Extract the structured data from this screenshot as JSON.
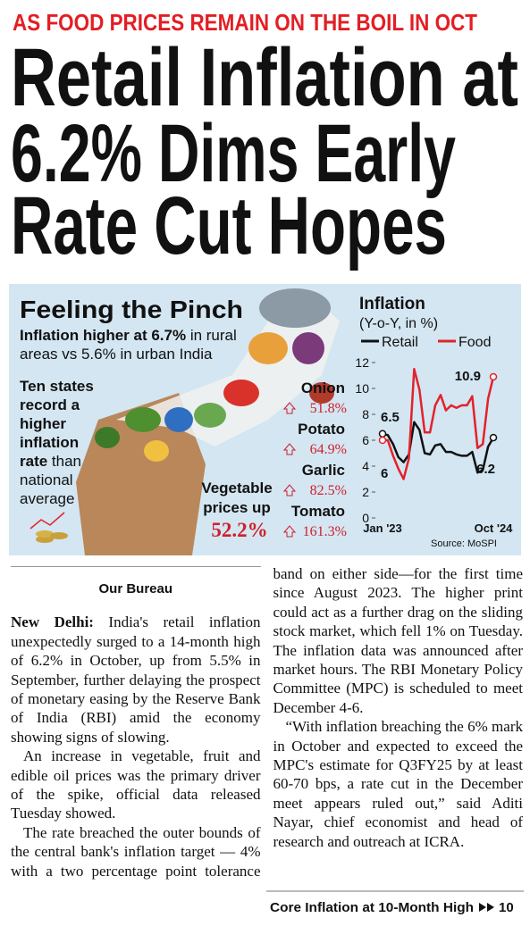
{
  "kicker": "AS FOOD PRICES REMAIN ON THE BOIL IN OCT",
  "headline": [
    "Retail Inflation at",
    "6.2% Dims Early",
    "Rate Cut Hopes"
  ],
  "infographic": {
    "title": "Feeling the Pinch",
    "summary": [
      "Inflation higher at 6.7%",
      " in rural",
      "areas vs 5.6% in urban India"
    ],
    "states_note": [
      "Ten states",
      "record a",
      "higher",
      "inflation",
      "rate",
      " than",
      "national",
      "average"
    ],
    "vegetables": [
      "Vegetable",
      "prices up",
      "52.2%"
    ],
    "items": [
      {
        "name": "Onion",
        "change": "51.8%"
      },
      {
        "name": "Potato",
        "change": "64.9%"
      },
      {
        "name": "Garlic",
        "change": "82.5%"
      },
      {
        "name": "Tomato",
        "change": "161.3%"
      }
    ]
  },
  "chart_data": {
    "type": "line",
    "title": "Inflation",
    "subtitle": "(Y-o-Y, in %)",
    "categories": [
      "Jan '23",
      null,
      null,
      null,
      null,
      null,
      null,
      null,
      null,
      null,
      null,
      null,
      null,
      null,
      null,
      null,
      null,
      null,
      null,
      null,
      null,
      "Oct '24"
    ],
    "series": [
      {
        "name": "Retail",
        "color": "#111111",
        "values": [
          6.5,
          6.4,
          5.7,
          4.7,
          4.3,
          4.9,
          7.4,
          6.8,
          5.0,
          4.9,
          5.6,
          5.7,
          5.1,
          5.1,
          4.9,
          4.8,
          4.8,
          5.1,
          3.5,
          3.7,
          5.5,
          6.2
        ]
      },
      {
        "name": "Food",
        "color": "#e3222b",
        "values": [
          6,
          6.0,
          4.8,
          3.8,
          3.0,
          4.6,
          11.5,
          9.9,
          6.6,
          6.6,
          8.7,
          9.5,
          8.3,
          8.7,
          8.5,
          8.7,
          8.7,
          9.4,
          5.4,
          5.7,
          9.2,
          10.9
        ]
      }
    ],
    "ylim": [
      0,
      12
    ],
    "yticks": [
      0,
      2,
      4,
      6,
      8,
      10,
      12
    ],
    "source": "Source: MoSPI"
  },
  "article": {
    "byline": "Our Bureau",
    "dateline": "New Delhi:",
    "paragraphs": [
      "India's retail inflation unexpectedly surged to a 14-month high of 6.2% in October, up from 5.5% in September, further delaying the prospect of monetary easing by the Reserve Bank of India (RBI) amid the economy showing signs of slowing.",
      "An increase in vegetable, fruit and edible oil prices was the primary driver of the spike, official data released Tuesday showed.",
      "The rate breached the outer bounds of the central bank's inflation target — 4% with a two percentage point tolerance band on either side—for the first time since August 2023. The higher print could act as a further drag on the sliding stock market, which fell 1% on Tuesday. The inflation data was announced after market hours. The RBI Monetary Policy Committee (MPC) is scheduled to meet December 4-6.",
      "“With inflation breaching the 6% mark in October and expected to exceed the MPC's estimate for Q3FY25 by at least 60-70 bps, a rate cut in the December meet appears ruled out,” said Aditi Nayar, chief economist and head of research and outreach at ICRA."
    ],
    "footer": {
      "text": "Core Inflation at 10-Month High",
      "page": "10"
    }
  }
}
